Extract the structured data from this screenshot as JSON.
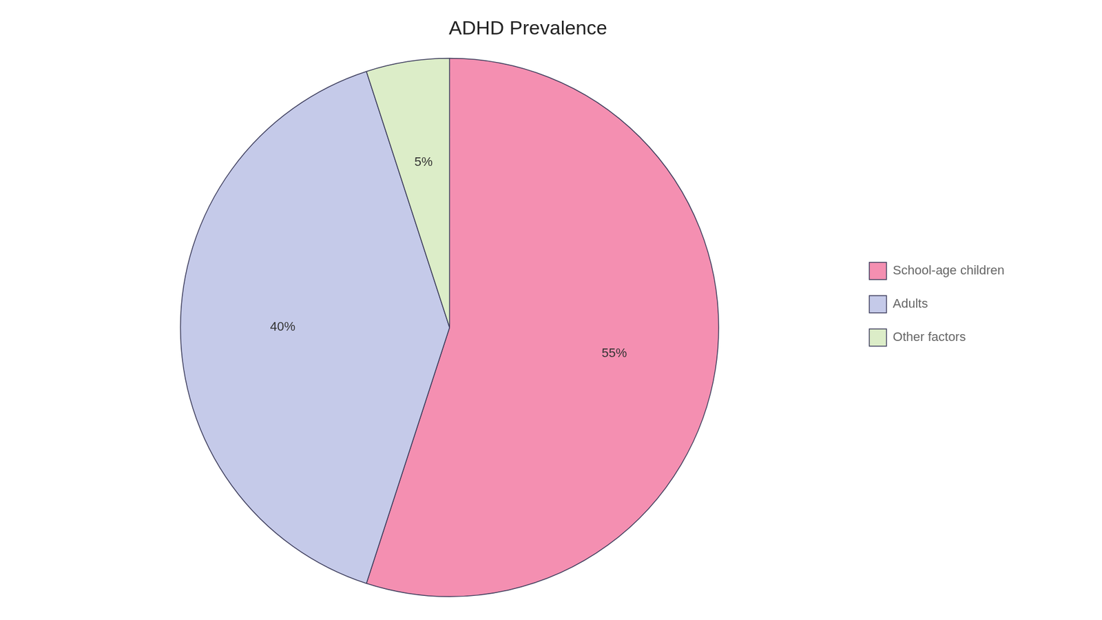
{
  "chart_data": {
    "type": "pie",
    "title": "ADHD Prevalence",
    "categories": [
      "School-age children",
      "Adults",
      "Other factors"
    ],
    "values": [
      55,
      40,
      5
    ],
    "value_labels": [
      "55%",
      "40%",
      "5%"
    ],
    "colors": [
      "#F48FB1",
      "#C5CAE9",
      "#DCEDC8"
    ],
    "data_labels": true,
    "legend": "right"
  }
}
